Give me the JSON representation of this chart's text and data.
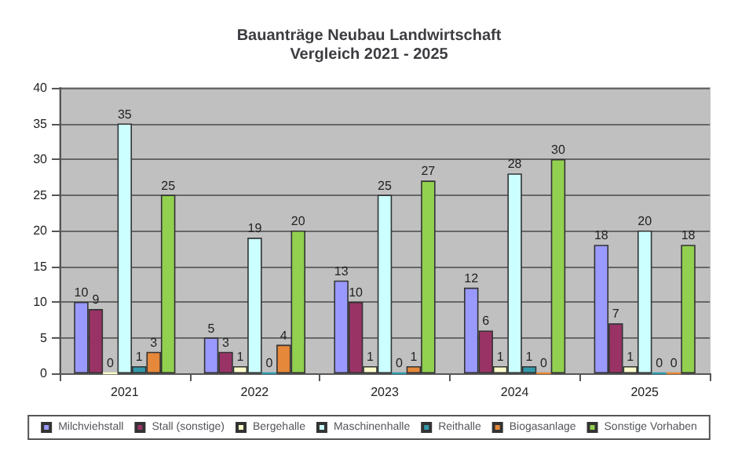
{
  "chart_data": {
    "type": "bar",
    "title": "Bauanträge Neubau Landwirtschaft\nVergleich 2021 - 2025",
    "categories": [
      "2021",
      "2022",
      "2023",
      "2024",
      "2025"
    ],
    "series": [
      {
        "name": "Milchviehstall",
        "color": "#9999ff",
        "values": [
          10,
          5,
          13,
          12,
          18
        ]
      },
      {
        "name": "Stall (sonstige)",
        "color": "#993366",
        "values": [
          9,
          3,
          10,
          6,
          7
        ]
      },
      {
        "name": "Bergehalle",
        "color": "#ffffcc",
        "values": [
          0,
          1,
          1,
          1,
          1
        ]
      },
      {
        "name": "Maschinenhalle",
        "color": "#ccffff",
        "values": [
          35,
          19,
          25,
          28,
          20
        ]
      },
      {
        "name": "Reithalle",
        "color": "#3399aa",
        "values": [
          1,
          0,
          0,
          1,
          0
        ]
      },
      {
        "name": "Biogasanlage",
        "color": "#e6883a",
        "values": [
          3,
          4,
          1,
          0,
          0
        ]
      },
      {
        "name": "Sonstige Vorhaben",
        "color": "#92d050",
        "values": [
          25,
          20,
          27,
          30,
          18
        ]
      }
    ],
    "ylim": [
      0,
      40
    ],
    "yticks": [
      0,
      5,
      10,
      15,
      20,
      25,
      30,
      35,
      40
    ],
    "grid": "y",
    "legend": "bottom",
    "data_labels": true
  }
}
